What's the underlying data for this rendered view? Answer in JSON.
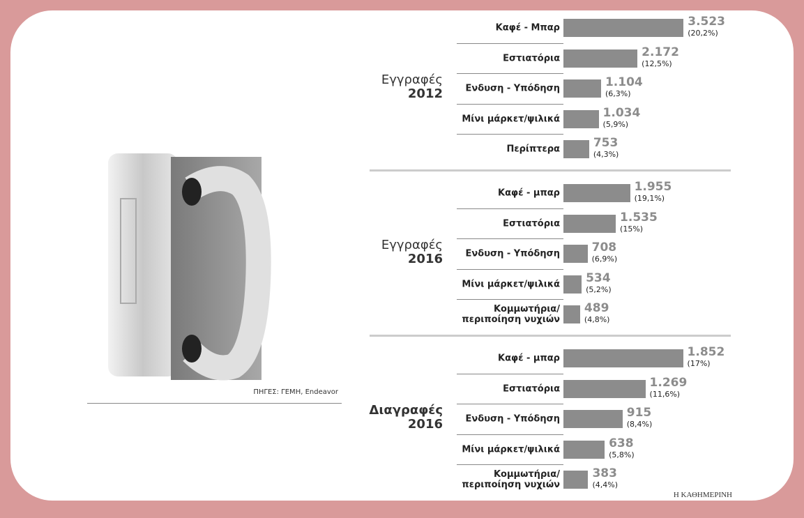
{
  "source": "ΠΗΓΕΣ: ΓΕΜΗ, Endeavor",
  "footer": "Η ΚΑΘΗΜΕΡΙΝΗ",
  "chart_data": [
    {
      "type": "bar",
      "orientation": "horizontal",
      "title": "Εγγραφές",
      "subtitle": "2012",
      "title_bold": false,
      "categories": [
        "Καφέ - Μπαρ",
        "Εστιατόρια",
        "Ενδυση - Υπόδηση",
        "Μίνι μάρκετ/ψιλικά",
        "Περίπτερα"
      ],
      "values": [
        3523,
        2172,
        1104,
        1034,
        753
      ],
      "value_labels": [
        "3.523",
        "2.172",
        "1.104",
        "1.034",
        "753"
      ],
      "share_labels": [
        "(20,2%)",
        "(12,5%)",
        "(6,3%)",
        "(5,9%)",
        "(4,3%)"
      ],
      "color": "#8c8c8c",
      "xlim": [
        0,
        3600
      ]
    },
    {
      "type": "bar",
      "orientation": "horizontal",
      "title": "Εγγραφές",
      "subtitle": "2016",
      "title_bold": false,
      "categories": [
        "Καφέ - μπαρ",
        "Εστιατόρια",
        "Ενδυση - Υπόδηση",
        "Μίνι μάρκετ/ψιλικά",
        "Κομμωτήρια/\nπεριποίηση νυχιών"
      ],
      "values": [
        1955,
        1535,
        708,
        534,
        489
      ],
      "value_labels": [
        "1.955",
        "1.535",
        "708",
        "534",
        "489"
      ],
      "share_labels": [
        "(19,1%)",
        "(15%)",
        "(6,9%)",
        "(5,2%)",
        "(4,8%)"
      ],
      "color": "#8c8c8c",
      "xlim": [
        0,
        3600
      ]
    },
    {
      "type": "bar",
      "orientation": "horizontal",
      "title": "Διαγραφές",
      "subtitle": "2016",
      "title_bold": true,
      "categories": [
        "Καφέ - μπαρ",
        "Εστιατόρια",
        "Ενδυση - Υπόδηση",
        "Μίνι μάρκετ/ψιλικά",
        "Κομμωτήρια/\nπεριποίηση νυχιών"
      ],
      "values": [
        1852,
        1269,
        915,
        638,
        383
      ],
      "value_labels": [
        "1.852",
        "1.269",
        "915",
        "638",
        "383"
      ],
      "share_labels": [
        "(17%)",
        "(11,6%)",
        "(8,4%)",
        "(5,8%)",
        "(4,4%)"
      ],
      "color": "#8c8c8c",
      "xlim": [
        0,
        1900
      ]
    }
  ]
}
